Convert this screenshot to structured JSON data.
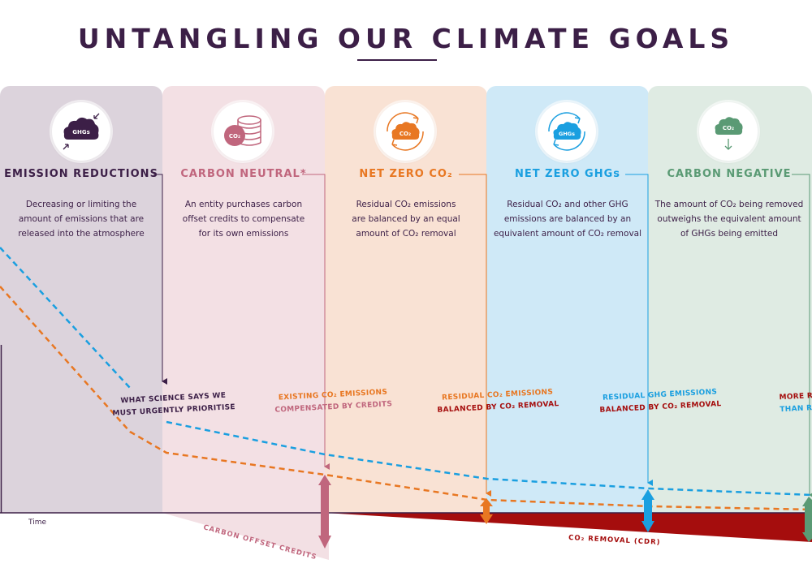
{
  "title": "UNTANGLING OUR CLIMATE GOALS",
  "columns": [
    {
      "heading": "EMISSION REDUCTIONS",
      "desc": [
        "Decreasing or limiting the",
        "amount of emissions that are",
        "released into the atmosphere"
      ],
      "icon": "ghgs-cloud-icon",
      "icon_text": "GHGs",
      "color": "#3c1f47",
      "bg": "#dcd3dc"
    },
    {
      "heading": "CARBON NEUTRAL*",
      "desc": [
        "An entity purchases carbon",
        "offset credits to compensate",
        "for its own emissions"
      ],
      "icon": "co2-coins-icon",
      "icon_text": "CO₂",
      "color": "#c0667d",
      "bg": "#f3e0e4"
    },
    {
      "heading": "NET ZERO CO₂",
      "desc": [
        "Residual CO₂ emissions",
        "are balanced by an equal",
        "amount of CO₂ removal"
      ],
      "icon": "co2-cycle-icon",
      "icon_text": "CO₂",
      "color": "#e87722",
      "bg": "#f9e2d4"
    },
    {
      "heading": "NET ZERO GHGs",
      "desc": [
        "Residual CO₂ and other GHG",
        "emissions are balanced by an",
        "equivalent amount of CO₂ removal"
      ],
      "icon": "ghgs-cycle-icon",
      "icon_text": "GHGs",
      "color": "#1a9fe0",
      "bg": "#cfe9f7"
    },
    {
      "heading": "CARBON NEGATIVE",
      "desc": [
        "The amount of CO₂ being removed",
        "outweighs the equivalent amount",
        "of GHGs being emitted"
      ],
      "icon": "co2-down-icon",
      "icon_text": "CO₂",
      "color": "#5a9a74",
      "bg": "#dfebe3"
    }
  ],
  "labels": {
    "science": [
      "WHAT SCIENCE SAYS WE",
      "MUST URGENTLY PRIORITISE"
    ],
    "existing": [
      "EXISTING CO₂ EMISSIONS",
      "COMPENSATED BY CREDITS"
    ],
    "residual_co2": [
      "RESIDUAL CO₂ EMISSIONS",
      "BALANCED BY CO₂ REMOVAL"
    ],
    "residual_ghg": [
      "RESIDUAL GHG EMISSIONS",
      "BALANCED BY CO₂ REMOVAL"
    ],
    "more": [
      "MORE RE",
      "THAN RE"
    ],
    "time": "Time",
    "offset": "CARBON OFFSET CREDITS",
    "removal": "CO₂ REMOVAL (CDR)"
  },
  "colors": {
    "dark": "#3c1f47",
    "pink": "#c0667d",
    "orange": "#e87722",
    "blue": "#1a9fe0",
    "green": "#5a9a74",
    "red": "#a50d0d",
    "darkred": "#b0101a"
  }
}
